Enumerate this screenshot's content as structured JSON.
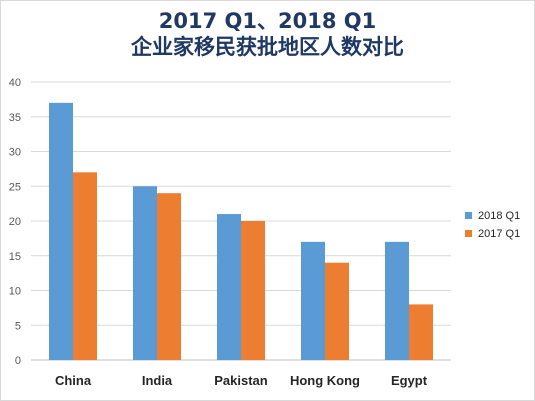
{
  "chart_data": {
    "type": "bar",
    "title": "2017 Q1、2018 Q1",
    "subtitle": "企业家移民获批地区人数对比",
    "categories": [
      "China",
      "India",
      "Pakistan",
      "Hong Kong",
      "Egypt"
    ],
    "series": [
      {
        "name": "2018 Q1",
        "color": "#5b9bd5",
        "values": [
          37,
          25,
          21,
          17,
          17
        ]
      },
      {
        "name": "2017 Q1",
        "color": "#ed7d31",
        "values": [
          27,
          24,
          20,
          14,
          8
        ]
      }
    ],
    "yticks": [
      "0",
      "5",
      "10",
      "15",
      "20",
      "25",
      "30",
      "35",
      "40"
    ],
    "ylim": [
      0,
      40
    ],
    "grid": true,
    "legend": "right"
  }
}
